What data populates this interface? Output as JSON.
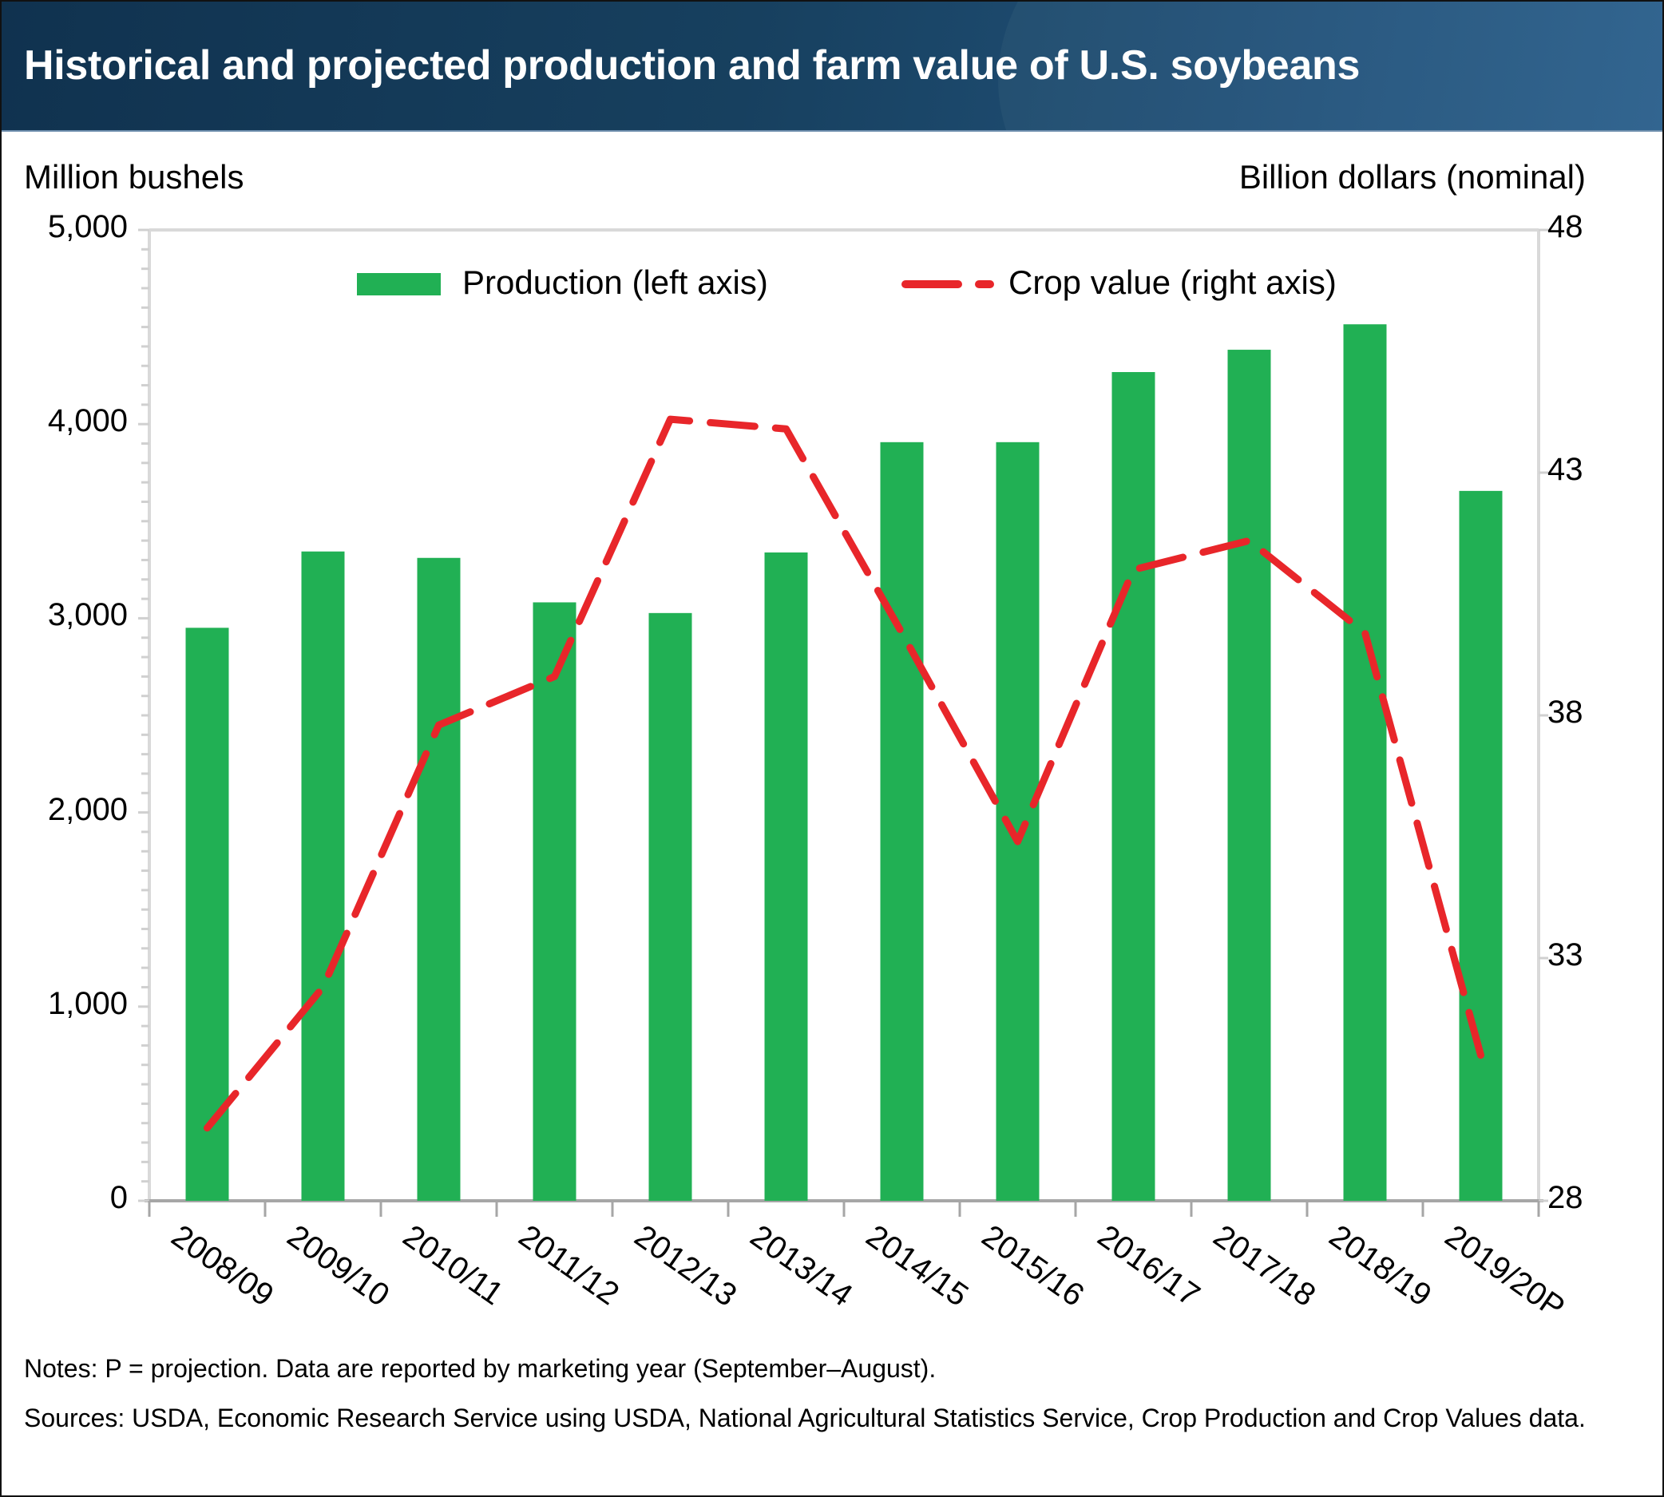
{
  "header": {
    "title": "Historical and projected production and farm value of U.S. soybeans",
    "background_color": "#17405f"
  },
  "chart_data": {
    "type": "bar",
    "title": "Historical and projected production and farm value of U.S. soybeans",
    "categories": [
      "2008/09",
      "2009/10",
      "2010/11",
      "2011/12",
      "2012/13",
      "2013/14",
      "2014/15",
      "2015/16",
      "2016/17",
      "2017/18",
      "2018/19",
      "2019/20P"
    ],
    "left_axis": {
      "label": "Million bushels",
      "range": [
        0,
        5000
      ],
      "ticks": [
        0,
        1000,
        2000,
        3000,
        4000,
        5000
      ],
      "tick_labels": [
        "0",
        "1,000",
        "2,000",
        "3,000",
        "4,000",
        "5,000"
      ]
    },
    "right_axis": {
      "label": "Billion dollars (nominal)",
      "range": [
        28,
        48
      ],
      "ticks": [
        28,
        33,
        38,
        43,
        48
      ],
      "tick_labels": [
        "28",
        "33",
        "38",
        "43",
        "48"
      ]
    },
    "series": [
      {
        "name": "Production (left axis)",
        "type": "bar",
        "axis": "left",
        "color": "#21b054",
        "values": [
          2951,
          3344,
          3311,
          3082,
          3027,
          3339,
          3907,
          3907,
          4268,
          4383,
          4514,
          3656
        ]
      },
      {
        "name": "Crop value (right axis)",
        "type": "line",
        "style": "dashed",
        "axis": "right",
        "color": "#e8262a",
        "values": [
          29.5,
          32.4,
          37.8,
          38.8,
          44.1,
          43.9,
          39.7,
          35.4,
          41.0,
          41.6,
          39.7,
          31.0
        ]
      }
    ],
    "legend": {
      "position": "top-center",
      "entries": [
        "Production (left axis)",
        "Crop value (right axis)"
      ]
    },
    "grid": false,
    "xlabel": "",
    "ylabel": "Million bushels",
    "y2label": "Billion dollars (nominal)"
  },
  "footer": {
    "notes": "Notes: P = projection. Data are reported by marketing year (September–August).",
    "sources": "Sources: USDA, Economic Research Service using USDA, National Agricultural Statistics Service, Crop Production and Crop Values data."
  }
}
